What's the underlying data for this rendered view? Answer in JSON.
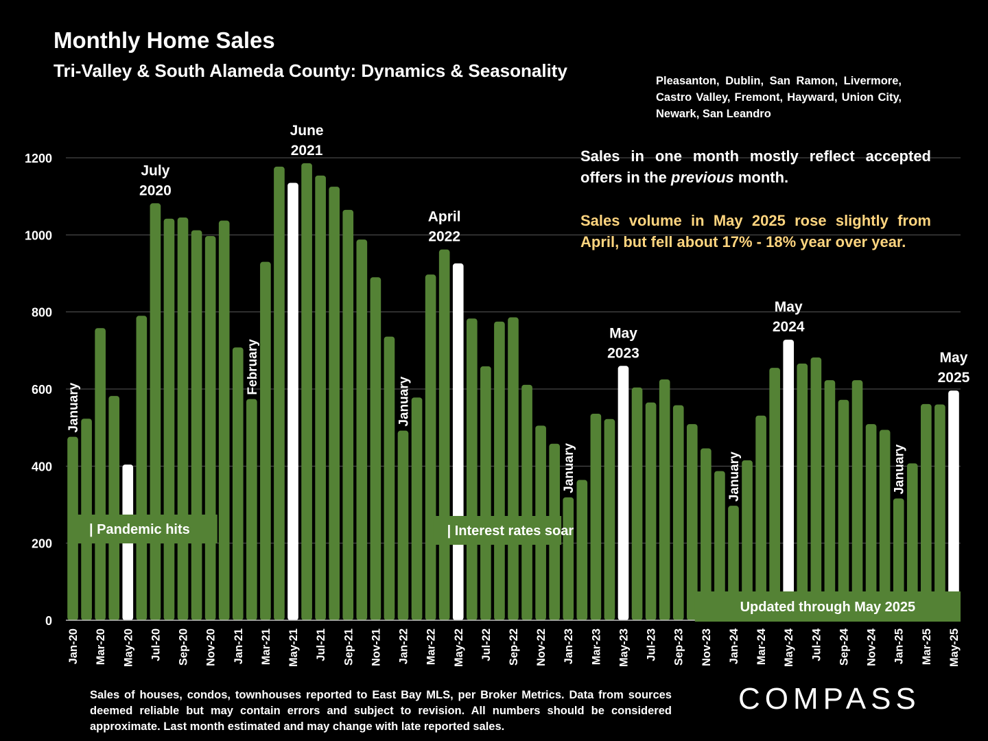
{
  "title": "Monthly Home Sales",
  "subtitle": "Tri-Valley & South Alameda County: Dynamics & Seasonality",
  "cities": "Pleasanton, Dublin, San Ramon, Livermore, Castro Valley, Fremont, Hayward, Union City, Newark, San Leandro",
  "note_line1_prefix": "Sales in one month mostly reflect accepted offers in the ",
  "note_line1_italic": "previous",
  "note_line1_suffix": " month.",
  "note_line2": "Sales volume in May 2025 rose slightly from April, but fell about 17% - 18% year over year.",
  "footer": "Sales of houses, condos, townhouses reported to East Bay MLS, per Broker Metrics. Data from sources deemed reliable but may contain errors and subject to revision. All numbers should be considered approximate.  Last month estimated and may change with late reported sales.",
  "logo": "COMPASS",
  "colors": {
    "bar": "#548235",
    "highlight": "#ffffff",
    "note_highlight": "#ffd57f",
    "background": "#000000",
    "grid": "#595959"
  },
  "chart_data": {
    "type": "bar",
    "ylim": [
      0,
      1200
    ],
    "yticks": [
      0,
      200,
      400,
      600,
      800,
      1000,
      1200
    ],
    "grid": true,
    "categories": [
      "Jan-20",
      "Feb-20",
      "Mar-20",
      "Apr-20",
      "May-20",
      "Jun-20",
      "Jul-20",
      "Aug-20",
      "Sep-20",
      "Oct-20",
      "Nov-20",
      "Dec-20",
      "Jan-21",
      "Feb-21",
      "Mar-21",
      "Apr-21",
      "May-21",
      "Jun-21",
      "Jul-21",
      "Aug-21",
      "Sep-21",
      "Oct-21",
      "Nov-21",
      "Dec-21",
      "Jan-22",
      "Feb-22",
      "Mar-22",
      "Apr-22",
      "May-22",
      "Jun-22",
      "Jul-22",
      "Aug-22",
      "Sep-22",
      "Oct-22",
      "Nov-22",
      "Dec-22",
      "Jan-23",
      "Feb-23",
      "Mar-23",
      "Apr-23",
      "May-23",
      "Jun-23",
      "Jul-23",
      "Aug-23",
      "Sep-23",
      "Oct-23",
      "Nov-23",
      "Dec-23",
      "Jan-24",
      "Feb-24",
      "Mar-24",
      "Apr-24",
      "May-24",
      "Jun-24",
      "Jul-24",
      "Aug-24",
      "Sep-24",
      "Oct-24",
      "Nov-24",
      "Dec-24",
      "Jan-25",
      "Feb-25",
      "Mar-25",
      "Apr-25",
      "May-25"
    ],
    "tick_labels": [
      "Jan-20",
      "Mar-20",
      "May-20",
      "Jul-20",
      "Sep-20",
      "Nov-20",
      "Jan-21",
      "Mar-21",
      "May-21",
      "Jul-21",
      "Sep-21",
      "Nov-21",
      "Jan-22",
      "Mar-22",
      "May-22",
      "Jul-22",
      "Sep-22",
      "Nov-22",
      "Jan-23",
      "Mar-23",
      "May-23",
      "Jul-23",
      "Sep-23",
      "Nov-23",
      "Jan-24",
      "Mar-24",
      "May-24",
      "Jul-24",
      "Sep-24",
      "Nov-24",
      "Jan-25",
      "Mar-25",
      "May-25"
    ],
    "values": [
      476,
      523,
      758,
      582,
      404,
      790,
      1082,
      1042,
      1045,
      1012,
      997,
      1037,
      708,
      574,
      930,
      1177,
      1135,
      1186,
      1154,
      1125,
      1065,
      988,
      890,
      736,
      492,
      578,
      897,
      962,
      926,
      783,
      659,
      775,
      786,
      611,
      505,
      458,
      319,
      364,
      536,
      522,
      660,
      604,
      565,
      625,
      558,
      509,
      446,
      387,
      297,
      415,
      531,
      655,
      728,
      666,
      682,
      623,
      572,
      623,
      509,
      494,
      316,
      407,
      561,
      560,
      596
    ],
    "highlighted": [
      "May-20",
      "May-21",
      "May-22",
      "May-23",
      "May-24",
      "May-25"
    ],
    "annotations": [
      {
        "category": "Jul-20",
        "lines": [
          "July",
          "2020"
        ]
      },
      {
        "category": "Jun-21",
        "lines": [
          "June",
          "2021"
        ]
      },
      {
        "category": "Apr-22",
        "lines": [
          "April",
          "2022"
        ]
      },
      {
        "category": "May-23",
        "lines": [
          "May",
          "2023"
        ]
      },
      {
        "category": "May-24",
        "lines": [
          "May",
          "2024"
        ]
      },
      {
        "category": "May-25",
        "lines": [
          "May",
          "2025"
        ]
      }
    ],
    "vertical_labels": [
      {
        "category": "Jan-20",
        "text": "January"
      },
      {
        "category": "Feb-21",
        "text": "February"
      },
      {
        "category": "Jan-22",
        "text": "January"
      },
      {
        "category": "Jan-23",
        "text": "January"
      },
      {
        "category": "Jan-24",
        "text": "January"
      },
      {
        "category": "Jan-25",
        "text": "January"
      }
    ],
    "callouts": [
      {
        "text": "| Pandemic hits",
        "from": "Jan-20",
        "to": "Nov-20"
      },
      {
        "text": "| Interest rates soar",
        "from": "Mar-22",
        "to": "Dec-22"
      },
      {
        "text": "Updated through May 2025",
        "from": "Oct-23",
        "to": "May-25"
      }
    ]
  }
}
